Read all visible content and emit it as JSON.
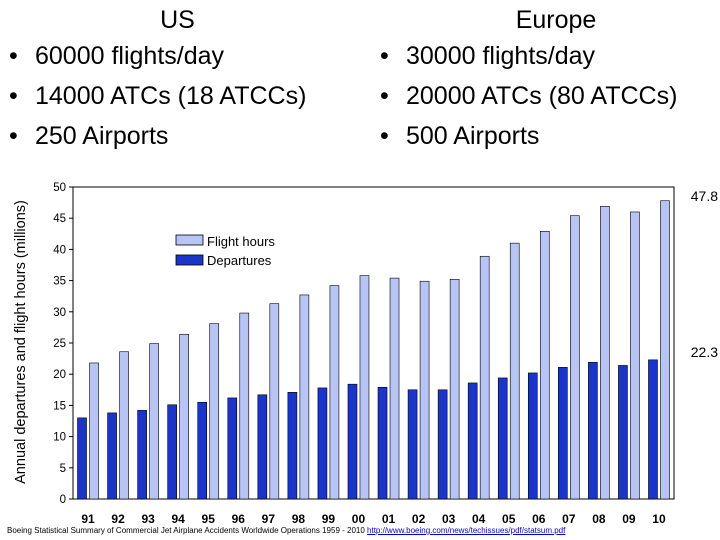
{
  "us": {
    "title": "US",
    "bullets": [
      "60000 flights/day",
      "14000 ATCs (18 ATCCs)",
      "250 Airports"
    ]
  },
  "europe": {
    "title": "Europe",
    "bullets": [
      "30000 flights/day",
      "20000 ATCs (80 ATCCs)",
      "500 Airports"
    ]
  },
  "bullet_glyph": "•",
  "chart_data": {
    "type": "bar",
    "title": "",
    "xlabel": "",
    "ylabel": "Annual departures and flight hours (millions)",
    "ylim": [
      0,
      50
    ],
    "yticks": [
      0,
      5,
      10,
      15,
      20,
      25,
      30,
      35,
      40,
      45,
      50
    ],
    "grid": false,
    "legend_position": "upper-left",
    "categories": [
      "91",
      "92",
      "93",
      "94",
      "95",
      "96",
      "97",
      "98",
      "99",
      "00",
      "01",
      "02",
      "03",
      "04",
      "05",
      "06",
      "07",
      "08",
      "09",
      "10"
    ],
    "series": [
      {
        "name": "Flight hours",
        "color": "#b8c4f4",
        "values": [
          21.8,
          23.6,
          24.9,
          26.4,
          28.1,
          29.8,
          31.3,
          32.7,
          34.2,
          35.8,
          35.4,
          34.9,
          35.2,
          38.9,
          41.0,
          42.9,
          45.4,
          46.9,
          46.0,
          47.8
        ]
      },
      {
        "name": "Departures",
        "color": "#1b35c8",
        "values": [
          13.0,
          13.8,
          14.2,
          15.1,
          15.5,
          16.2,
          16.7,
          17.1,
          17.8,
          18.4,
          17.9,
          17.5,
          17.5,
          18.6,
          19.4,
          20.2,
          21.1,
          21.9,
          21.4,
          22.3
        ]
      }
    ],
    "annotations": [
      {
        "text": "47.8",
        "value": 47.8
      },
      {
        "text": "22.3",
        "value": 22.3
      }
    ]
  },
  "source": {
    "text": "Boeing Statistical Summary of Commercial Jet Airplane Accidents Worldwide Operations 1959 - 2010 ",
    "link_text": "http://www.boeing.com/news/techissues/pdf/statsum.pdf"
  }
}
